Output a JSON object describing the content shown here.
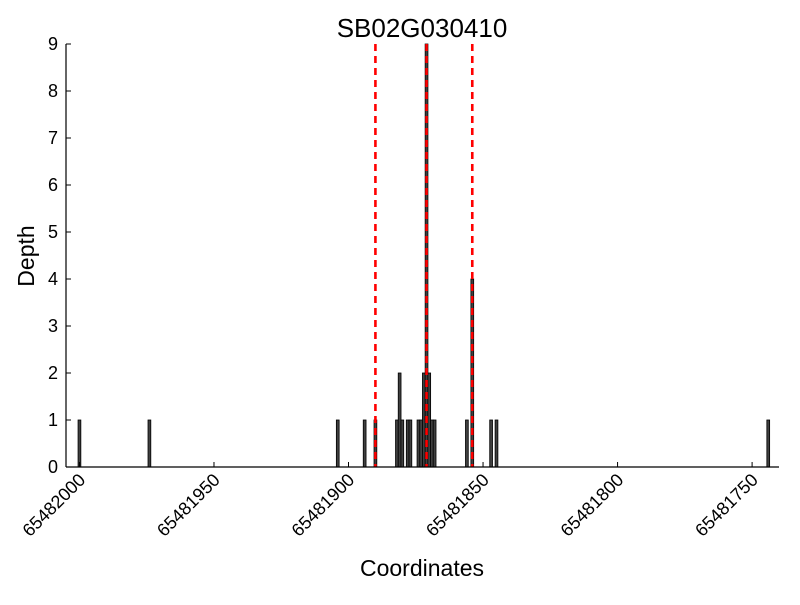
{
  "chart_data": {
    "type": "bar",
    "title": "SB02G030410",
    "xlabel": "Coordinates",
    "ylabel": "Depth",
    "xlim": [
      65482005,
      65481740
    ],
    "ylim": [
      0,
      9
    ],
    "x_ticks": [
      65482000,
      65481950,
      65481900,
      65481850,
      65481800,
      65481750
    ],
    "x_tick_labels": [
      "65482000",
      "65481950",
      "65481900",
      "65481850",
      "65481800",
      "65481750"
    ],
    "y_ticks": [
      0,
      1,
      2,
      3,
      4,
      5,
      6,
      7,
      8,
      9
    ],
    "y_tick_labels": [
      "0",
      "1",
      "2",
      "3",
      "4",
      "5",
      "6",
      "7",
      "8",
      "9"
    ],
    "grid": false,
    "bar_color": "#404040",
    "series": [
      {
        "x": [
          65482000,
          65481974,
          65481904,
          65481894,
          65481890,
          65481882,
          65481881,
          65481880,
          65481878,
          65481877,
          65481874,
          65481873,
          65481872,
          65481871,
          65481870,
          65481869,
          65481868,
          65481856,
          65481854,
          65481847,
          65481845,
          65481744
        ],
        "values": [
          1,
          1,
          1,
          1,
          1,
          1,
          2,
          1,
          1,
          1,
          1,
          1,
          2,
          9,
          2,
          1,
          1,
          1,
          4,
          1,
          1,
          1
        ]
      }
    ],
    "reference_lines": {
      "orientation": "vertical",
      "color": "#ff0000",
      "style": "dashed",
      "x": [
        65481890,
        65481871,
        65481854
      ]
    }
  }
}
